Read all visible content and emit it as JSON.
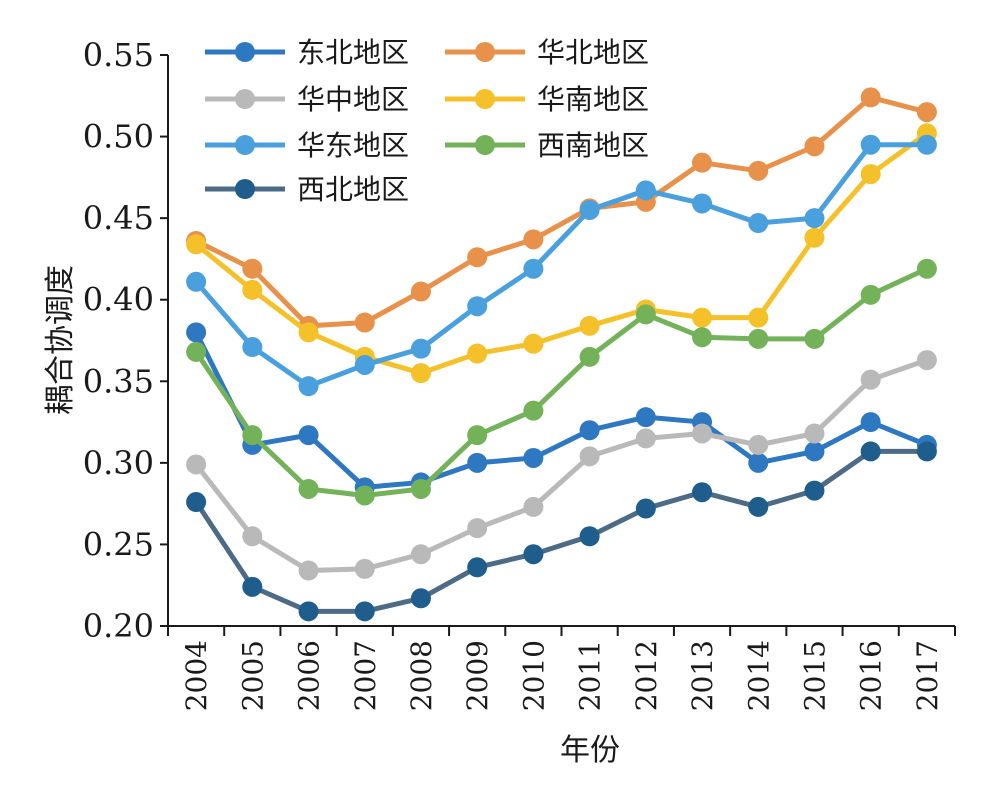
{
  "chart_data": {
    "type": "line",
    "xlabel": "年份",
    "ylabel": "耦合协调度",
    "ylim": [
      0.2,
      0.55
    ],
    "yticks": [
      "0.20",
      "0.25",
      "0.30",
      "0.35",
      "0.40",
      "0.45",
      "0.50",
      "0.55"
    ],
    "categories": [
      "2004",
      "2005",
      "2006",
      "2007",
      "2008",
      "2009",
      "2010",
      "2011",
      "2012",
      "2013",
      "2014",
      "2015",
      "2016",
      "2017"
    ],
    "grid": false,
    "legend_position": "top-left",
    "series": [
      {
        "name": "东北地区",
        "color": "#2e78c2",
        "values": [
          0.38,
          0.311,
          0.317,
          0.285,
          0.288,
          0.3,
          0.303,
          0.32,
          0.328,
          0.325,
          0.3,
          0.307,
          0.325,
          0.311
        ]
      },
      {
        "name": "华北地区",
        "color": "#e8914a",
        "values": [
          0.436,
          0.419,
          0.384,
          0.386,
          0.405,
          0.426,
          0.437,
          0.456,
          0.46,
          0.484,
          0.479,
          0.494,
          0.524,
          0.515
        ]
      },
      {
        "name": "华中地区",
        "color": "#b9b9b9",
        "values": [
          0.299,
          0.255,
          0.234,
          0.235,
          0.244,
          0.26,
          0.273,
          0.304,
          0.315,
          0.318,
          0.311,
          0.318,
          0.351,
          0.363
        ]
      },
      {
        "name": "华南地区",
        "color": "#f5c12a",
        "values": [
          0.434,
          0.406,
          0.38,
          0.365,
          0.355,
          0.367,
          0.373,
          0.384,
          0.394,
          0.389,
          0.389,
          0.438,
          0.477,
          0.502
        ]
      },
      {
        "name": "华东地区",
        "color": "#4aa0dd",
        "values": [
          0.411,
          0.371,
          0.347,
          0.36,
          0.37,
          0.396,
          0.419,
          0.455,
          0.467,
          0.459,
          0.447,
          0.45,
          0.495,
          0.495
        ]
      },
      {
        "name": "西南地区",
        "color": "#74b25a",
        "values": [
          0.368,
          0.317,
          0.284,
          0.28,
          0.284,
          0.317,
          0.332,
          0.365,
          0.391,
          0.377,
          0.376,
          0.376,
          0.403,
          0.419
        ]
      },
      {
        "name": "西北地区",
        "color": "#1f5d8c",
        "line_color": "#4e6b85",
        "values": [
          0.276,
          0.224,
          0.209,
          0.209,
          0.217,
          0.236,
          0.244,
          0.255,
          0.272,
          0.282,
          0.273,
          0.283,
          0.307,
          0.307
        ]
      }
    ]
  }
}
